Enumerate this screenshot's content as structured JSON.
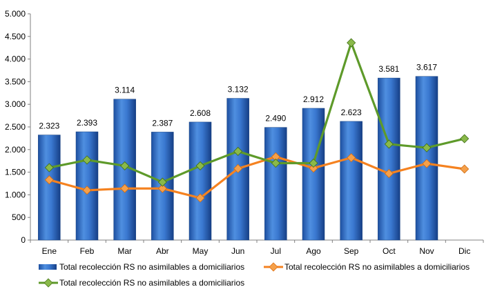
{
  "chart_data": {
    "type": "bar",
    "categories": [
      "Ene",
      "Feb",
      "Mar",
      "Abr",
      "May",
      "Jun",
      "Jul",
      "Ago",
      "Sep",
      "Oct",
      "Nov",
      "Dic"
    ],
    "ylim": [
      0,
      5000
    ],
    "yticks": [
      0,
      500,
      1000,
      1500,
      2000,
      2500,
      3000,
      3500,
      4000,
      4500,
      5000
    ],
    "ytick_labels": [
      "0",
      "500",
      "1.000",
      "1.500",
      "2.000",
      "2.500",
      "3.000",
      "3.500",
      "4.000",
      "4.500",
      "5.000"
    ],
    "grid": false,
    "legend_position": "bottom",
    "series": [
      {
        "name": "Total recolección RS no asimilables a domiciliarios",
        "type": "bar",
        "color": "#2f6fc9",
        "values": [
          2323,
          2393,
          3114,
          2387,
          2608,
          3132,
          2490,
          2912,
          2623,
          3581,
          3617,
          null
        ],
        "labels": [
          "2.323",
          "2.393",
          "3.114",
          "2.387",
          "2.608",
          "3.132",
          "2.490",
          "2.912",
          "2.623",
          "3.581",
          "3.617",
          ""
        ]
      },
      {
        "name": "Total recolección RS no asimilables a domiciliarios",
        "type": "line",
        "color": "#f58220",
        "marker_color": "#f5a04a",
        "values": [
          1330,
          1100,
          1140,
          1140,
          930,
          1580,
          1840,
          1590,
          1820,
          1470,
          1690,
          1570
        ]
      },
      {
        "name": "Total recolección RS no asimilables a domiciliarios",
        "type": "line",
        "color": "#5e9a2a",
        "marker_color": "#8ab94a",
        "values": [
          1600,
          1770,
          1640,
          1280,
          1640,
          1960,
          1700,
          1700,
          4360,
          2120,
          2040,
          2240
        ]
      }
    ]
  }
}
